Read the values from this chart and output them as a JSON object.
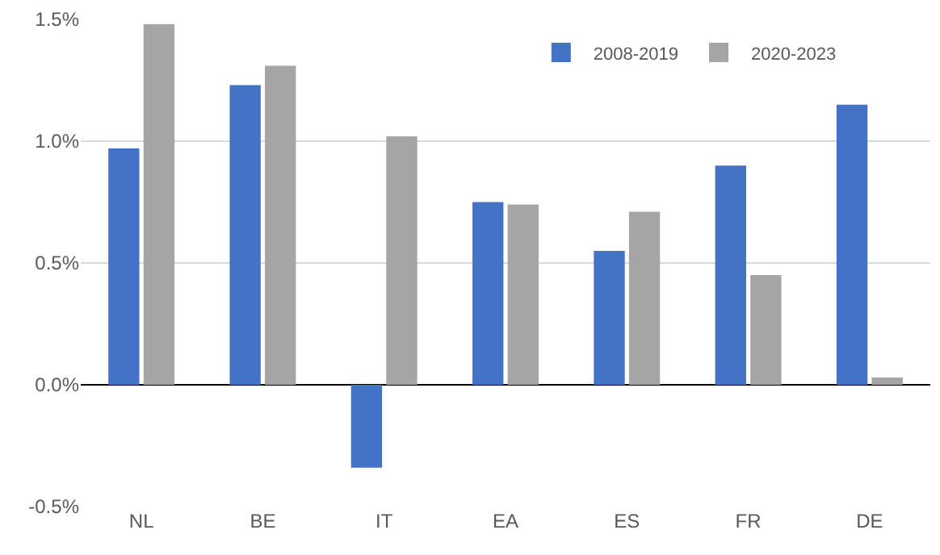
{
  "chart_data": {
    "type": "bar",
    "categories": [
      "NL",
      "BE",
      "IT",
      "EA",
      "ES",
      "FR",
      "DE"
    ],
    "series": [
      {
        "name": "2008-2019",
        "color": "#4472c4",
        "values": [
          0.97,
          1.23,
          -0.34,
          0.75,
          0.55,
          0.9,
          1.15
        ]
      },
      {
        "name": "2020-2023",
        "color": "#a5a5a5",
        "values": [
          1.48,
          1.31,
          1.02,
          0.74,
          0.71,
          0.45,
          0.03
        ]
      }
    ],
    "ylim": [
      -0.5,
      1.5
    ],
    "yticks": [
      {
        "value": -0.5,
        "label": "-0.5%"
      },
      {
        "value": 0,
        "label": "0.0%"
      },
      {
        "value": 0.5,
        "label": "0.5%"
      },
      {
        "value": 1.0,
        "label": "1.0%"
      },
      {
        "value": 1.5,
        "label": "1.5%"
      }
    ],
    "grid": "y",
    "legend": "top right"
  }
}
